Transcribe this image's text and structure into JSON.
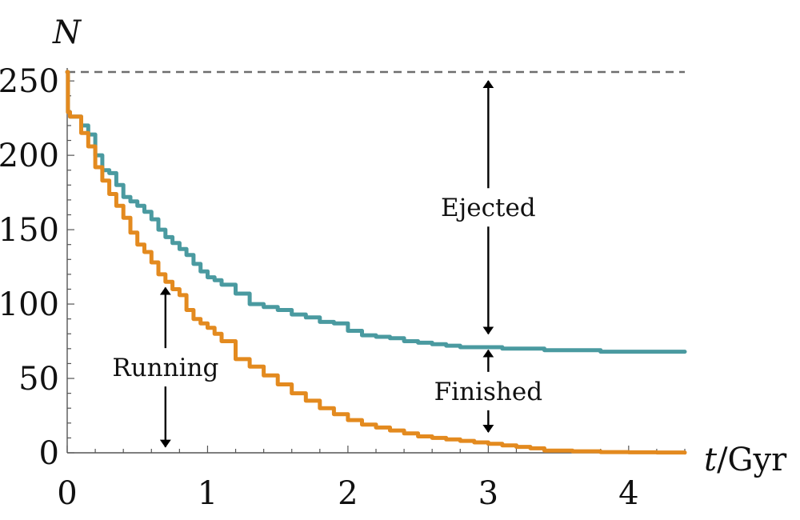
{
  "chart_data": {
    "type": "line",
    "xlabel_italic": "t",
    "xlabel_rest": "/Gyr",
    "ylabel": "N",
    "xlim": [
      0,
      4.4
    ],
    "ylim": [
      0,
      256
    ],
    "x_ticks": [
      "0",
      "1",
      "2",
      "3",
      "4"
    ],
    "y_ticks": [
      "0",
      "50",
      "100",
      "150",
      "200",
      "250"
    ],
    "grid": false,
    "reference_line": {
      "y": 256,
      "style": "dashed",
      "color": "#6e6e6e"
    },
    "series": [
      {
        "color": "#4a9aa0",
        "x": [
          0,
          0.005,
          0.02,
          0.1,
          0.15,
          0.2,
          0.25,
          0.3,
          0.35,
          0.4,
          0.45,
          0.5,
          0.55,
          0.6,
          0.65,
          0.7,
          0.75,
          0.8,
          0.85,
          0.9,
          0.95,
          1.0,
          1.05,
          1.1,
          1.2,
          1.3,
          1.4,
          1.5,
          1.6,
          1.7,
          1.8,
          1.9,
          2.0,
          2.1,
          2.2,
          2.3,
          2.4,
          2.5,
          2.6,
          2.7,
          2.8,
          2.9,
          3.0,
          3.1,
          3.2,
          3.4,
          3.6,
          3.8,
          4.0,
          4.2,
          4.4
        ],
        "y": [
          256,
          229,
          226,
          220,
          214,
          200,
          190,
          188,
          180,
          172,
          169,
          166,
          162,
          157,
          150,
          145,
          141,
          137,
          133,
          127,
          122,
          118,
          116,
          113,
          107,
          100,
          98,
          96,
          93,
          91,
          88,
          87,
          82,
          79,
          78,
          77,
          75,
          74,
          73,
          72,
          71,
          71,
          71,
          70,
          70,
          69,
          69,
          68,
          68,
          68,
          68
        ]
      },
      {
        "color": "#e38a1f",
        "x": [
          0,
          0.005,
          0.02,
          0.1,
          0.15,
          0.2,
          0.25,
          0.3,
          0.35,
          0.4,
          0.45,
          0.5,
          0.55,
          0.6,
          0.65,
          0.7,
          0.75,
          0.8,
          0.85,
          0.9,
          0.95,
          1.0,
          1.05,
          1.1,
          1.2,
          1.3,
          1.4,
          1.5,
          1.6,
          1.7,
          1.8,
          1.9,
          2.0,
          2.1,
          2.2,
          2.3,
          2.4,
          2.5,
          2.6,
          2.7,
          2.8,
          2.9,
          3.0,
          3.1,
          3.2,
          3.3,
          3.4,
          3.6,
          3.8,
          4.0,
          4.2,
          4.4
        ],
        "y": [
          256,
          229,
          226,
          215,
          206,
          192,
          183,
          174,
          166,
          158,
          148,
          140,
          135,
          128,
          120,
          115,
          110,
          106,
          96,
          90,
          87,
          84,
          80,
          75,
          63,
          58,
          52,
          46,
          40,
          35,
          30,
          26,
          22,
          19,
          17,
          15,
          13,
          11,
          10,
          9,
          8,
          7,
          6,
          5,
          4,
          3,
          1.5,
          1,
          0.5,
          0.3,
          0.2,
          0.1
        ]
      }
    ],
    "annotations": [
      {
        "text": "Ejected",
        "x": 3.0,
        "y_top": 250,
        "y_bottom": 80
      },
      {
        "text": "Finished",
        "x": 3.0,
        "y_top": 69,
        "y_bottom": 14
      },
      {
        "text": "Running",
        "x": 0.7,
        "y_top": 111,
        "y_bottom": 4
      }
    ]
  }
}
